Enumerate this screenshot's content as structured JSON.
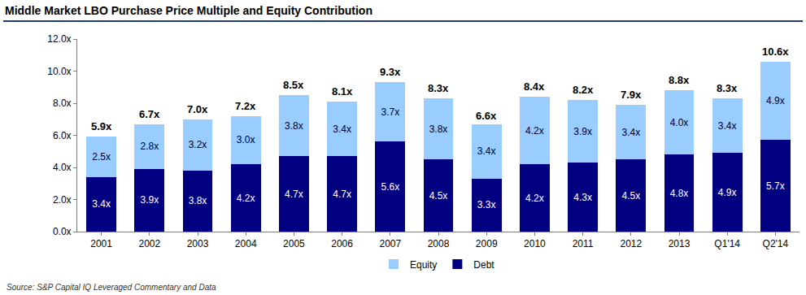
{
  "chart_data": {
    "type": "bar",
    "title": "Middle Market LBO Purchase Price Multiple and Equity Contribution",
    "source": "Source: S&P Capital IQ Leveraged Commentary and Data",
    "categories": [
      "2001",
      "2002",
      "2003",
      "2004",
      "2005",
      "2006",
      "2007",
      "2008",
      "2009",
      "2010",
      "2011",
      "2012",
      "2013",
      "Q1'14",
      "Q2'14"
    ],
    "series": [
      {
        "name": "Debt",
        "color": "#000080",
        "values": [
          3.4,
          3.9,
          3.8,
          4.2,
          4.7,
          4.7,
          5.6,
          4.5,
          3.3,
          4.2,
          4.3,
          4.5,
          4.8,
          4.9,
          5.7
        ],
        "value_labels": [
          "3.4x",
          "3.9x",
          "3.8x",
          "4.2x",
          "4.7x",
          "4.7x",
          "5.6x",
          "4.5x",
          "3.3x",
          "4.2x",
          "4.3x",
          "4.5x",
          "4.8x",
          "4.9x",
          "5.7x"
        ]
      },
      {
        "name": "Equity",
        "color": "#99CCFF",
        "values": [
          2.5,
          2.8,
          3.2,
          3.0,
          3.8,
          3.4,
          3.7,
          3.8,
          3.4,
          4.2,
          3.9,
          3.4,
          4.0,
          3.4,
          4.9
        ],
        "value_labels": [
          "2.5x",
          "2.8x",
          "3.2x",
          "3.0x",
          "3.8x",
          "3.4x",
          "3.7x",
          "3.8x",
          "3.4x",
          "4.2x",
          "3.9x",
          "3.4x",
          "4.0x",
          "3.4x",
          "4.9x"
        ]
      }
    ],
    "totals": [
      5.9,
      6.7,
      7.0,
      7.2,
      8.5,
      8.1,
      9.3,
      8.3,
      6.6,
      8.4,
      8.2,
      7.9,
      8.8,
      8.3,
      10.6
    ],
    "total_labels": [
      "5.9x",
      "6.7x",
      "7.0x",
      "7.2x",
      "8.5x",
      "8.1x",
      "9.3x",
      "8.3x",
      "6.6x",
      "8.4x",
      "8.2x",
      "7.9x",
      "8.8x",
      "8.3x",
      "10.6x"
    ],
    "ylim": [
      0,
      12
    ],
    "yticks": [
      {
        "value": 0,
        "label": "0.0x"
      },
      {
        "value": 2,
        "label": "2.0x"
      },
      {
        "value": 4,
        "label": "4.0x"
      },
      {
        "value": 6,
        "label": "6.0x"
      },
      {
        "value": 8,
        "label": "8.0x"
      },
      {
        "value": 10,
        "label": "10.0x"
      },
      {
        "value": 12,
        "label": "12.0x"
      }
    ],
    "stacked": true,
    "data_labels": true,
    "grid": false,
    "legend": "bottom"
  }
}
